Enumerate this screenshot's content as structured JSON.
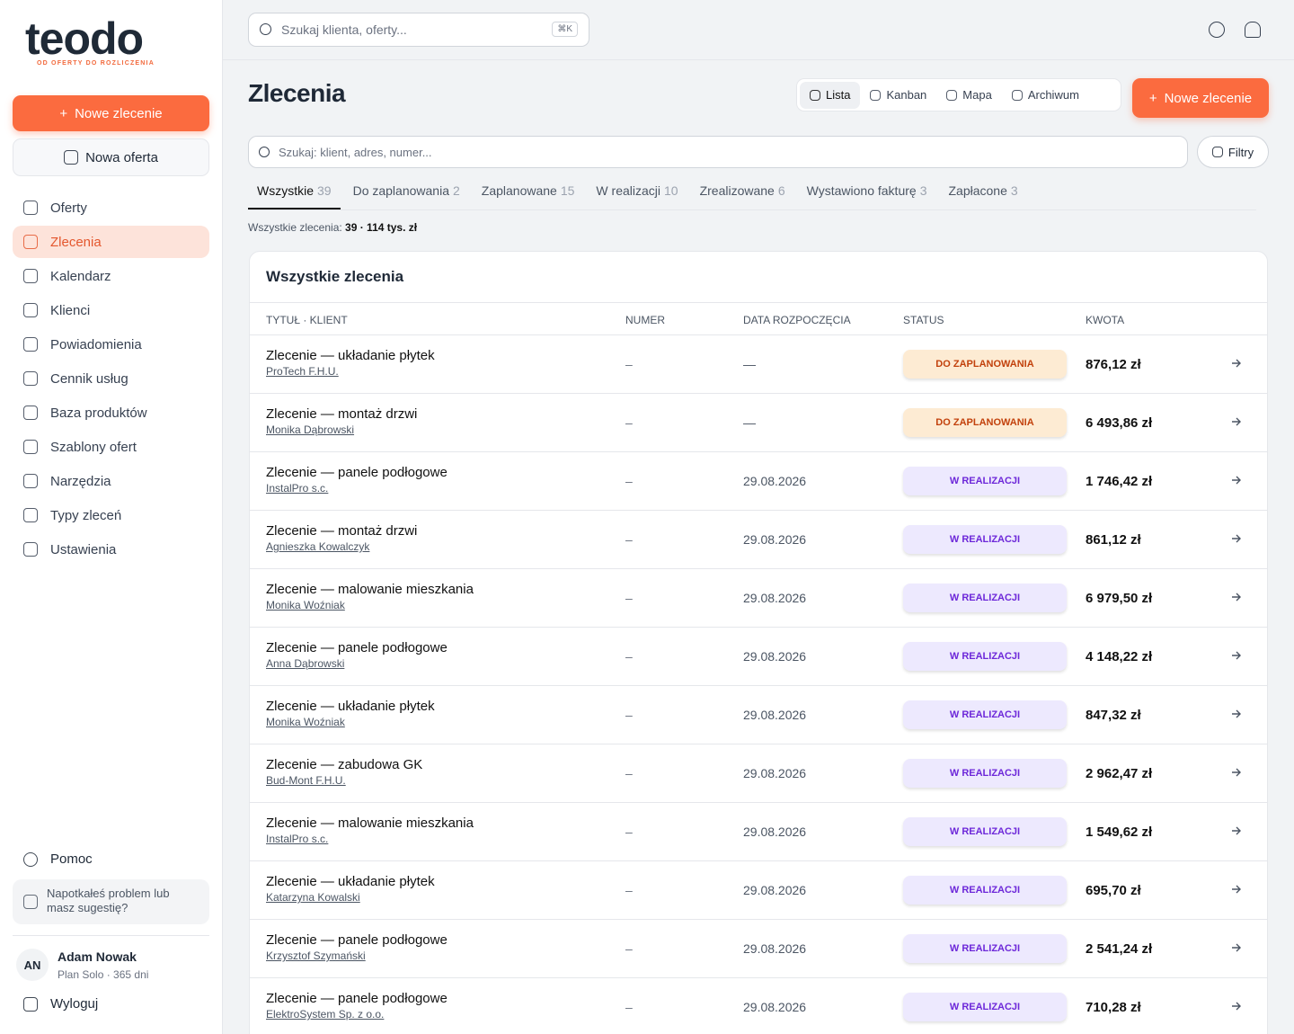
{
  "brand": {
    "logo": "teodo",
    "tagline": "OD OFERTY DO ROZLICZENIA"
  },
  "sidebar": {
    "new_order": "Nowe zlecenie",
    "new_offer": "Nowa oferta",
    "nav": [
      "Oferty",
      "Zlecenia",
      "Kalendarz",
      "Klienci",
      "Powiadomienia",
      "Cennik usług",
      "Baza produktów",
      "Szablony ofert",
      "Narzędzia",
      "Typy zleceń",
      "Ustawienia"
    ],
    "help": "Pomoc",
    "feedback": "Napotkałeś problem lub masz sugestię?",
    "user": {
      "initials": "AN",
      "name": "Adam Nowak",
      "plan": "Plan Solo · 365 dni"
    },
    "logout": "Wyloguj"
  },
  "topbar": {
    "search_placeholder": "Szukaj klienta, oferty...",
    "shortcut": "⌘K"
  },
  "page": {
    "title": "Zlecenia",
    "views": [
      "Lista",
      "Kanban",
      "Mapa",
      "Archiwum"
    ],
    "new_button": "Nowe zlecenie",
    "search_placeholder": "Szukaj: klient, adres, numer...",
    "filters": "Filtry",
    "tabs": [
      {
        "label": "Wszystkie",
        "count": "39"
      },
      {
        "label": "Do zaplanowania",
        "count": "2"
      },
      {
        "label": "Zaplanowane",
        "count": "15"
      },
      {
        "label": "W realizacji",
        "count": "10"
      },
      {
        "label": "Zrealizowane",
        "count": "6"
      },
      {
        "label": "Wystawiono fakturę",
        "count": "3"
      },
      {
        "label": "Zapłacone",
        "count": "3"
      }
    ],
    "summary": {
      "label": "Wszystkie zlecenia:",
      "value": "39 · 114 tys. zł"
    }
  },
  "table": {
    "title": "Wszystkie zlecenia",
    "columns": [
      "TYTUŁ · KLIENT",
      "NUMER",
      "DATA ROZPOCZĘCIA",
      "STATUS",
      "KWOTA"
    ],
    "rows": [
      {
        "title": "Zlecenie — układanie płytek",
        "client": "ProTech F.H.U.",
        "number": "–",
        "date": "—",
        "status": "DO ZAPLANOWANIA",
        "amount": "876,12 zł"
      },
      {
        "title": "Zlecenie — montaż drzwi",
        "client": "Monika Dąbrowski",
        "number": "–",
        "date": "—",
        "status": "DO ZAPLANOWANIA",
        "amount": "6 493,86 zł"
      },
      {
        "title": "Zlecenie — panele podłogowe",
        "client": "InstalPro s.c.",
        "number": "–",
        "date": "29.08.2026",
        "status": "W REALIZACJI",
        "amount": "1 746,42 zł"
      },
      {
        "title": "Zlecenie — montaż drzwi",
        "client": "Agnieszka Kowalczyk",
        "number": "–",
        "date": "29.08.2026",
        "status": "W REALIZACJI",
        "amount": "861,12 zł"
      },
      {
        "title": "Zlecenie — malowanie mieszkania",
        "client": "Monika Woźniak",
        "number": "–",
        "date": "29.08.2026",
        "status": "W REALIZACJI",
        "amount": "6 979,50 zł"
      },
      {
        "title": "Zlecenie — panele podłogowe",
        "client": "Anna Dąbrowski",
        "number": "–",
        "date": "29.08.2026",
        "status": "W REALIZACJI",
        "amount": "4 148,22 zł"
      },
      {
        "title": "Zlecenie — układanie płytek",
        "client": "Monika Woźniak",
        "number": "–",
        "date": "29.08.2026",
        "status": "W REALIZACJI",
        "amount": "847,32 zł"
      },
      {
        "title": "Zlecenie — zabudowa GK",
        "client": "Bud-Mont F.H.U.",
        "number": "–",
        "date": "29.08.2026",
        "status": "W REALIZACJI",
        "amount": "2 962,47 zł"
      },
      {
        "title": "Zlecenie — malowanie mieszkania",
        "client": "InstalPro s.c.",
        "number": "–",
        "date": "29.08.2026",
        "status": "W REALIZACJI",
        "amount": "1 549,62 zł"
      },
      {
        "title": "Zlecenie — układanie płytek",
        "client": "Katarzyna Kowalski",
        "number": "–",
        "date": "29.08.2026",
        "status": "W REALIZACJI",
        "amount": "695,70 zł"
      },
      {
        "title": "Zlecenie — panele podłogowe",
        "client": "Krzysztof Szymański",
        "number": "–",
        "date": "29.08.2026",
        "status": "W REALIZACJI",
        "amount": "2 541,24 zł"
      },
      {
        "title": "Zlecenie — panele podłogowe",
        "client": "ElektroSystem Sp. z o.o.",
        "number": "–",
        "date": "29.08.2026",
        "status": "W REALIZACJI",
        "amount": "710,28 zł"
      }
    ]
  }
}
